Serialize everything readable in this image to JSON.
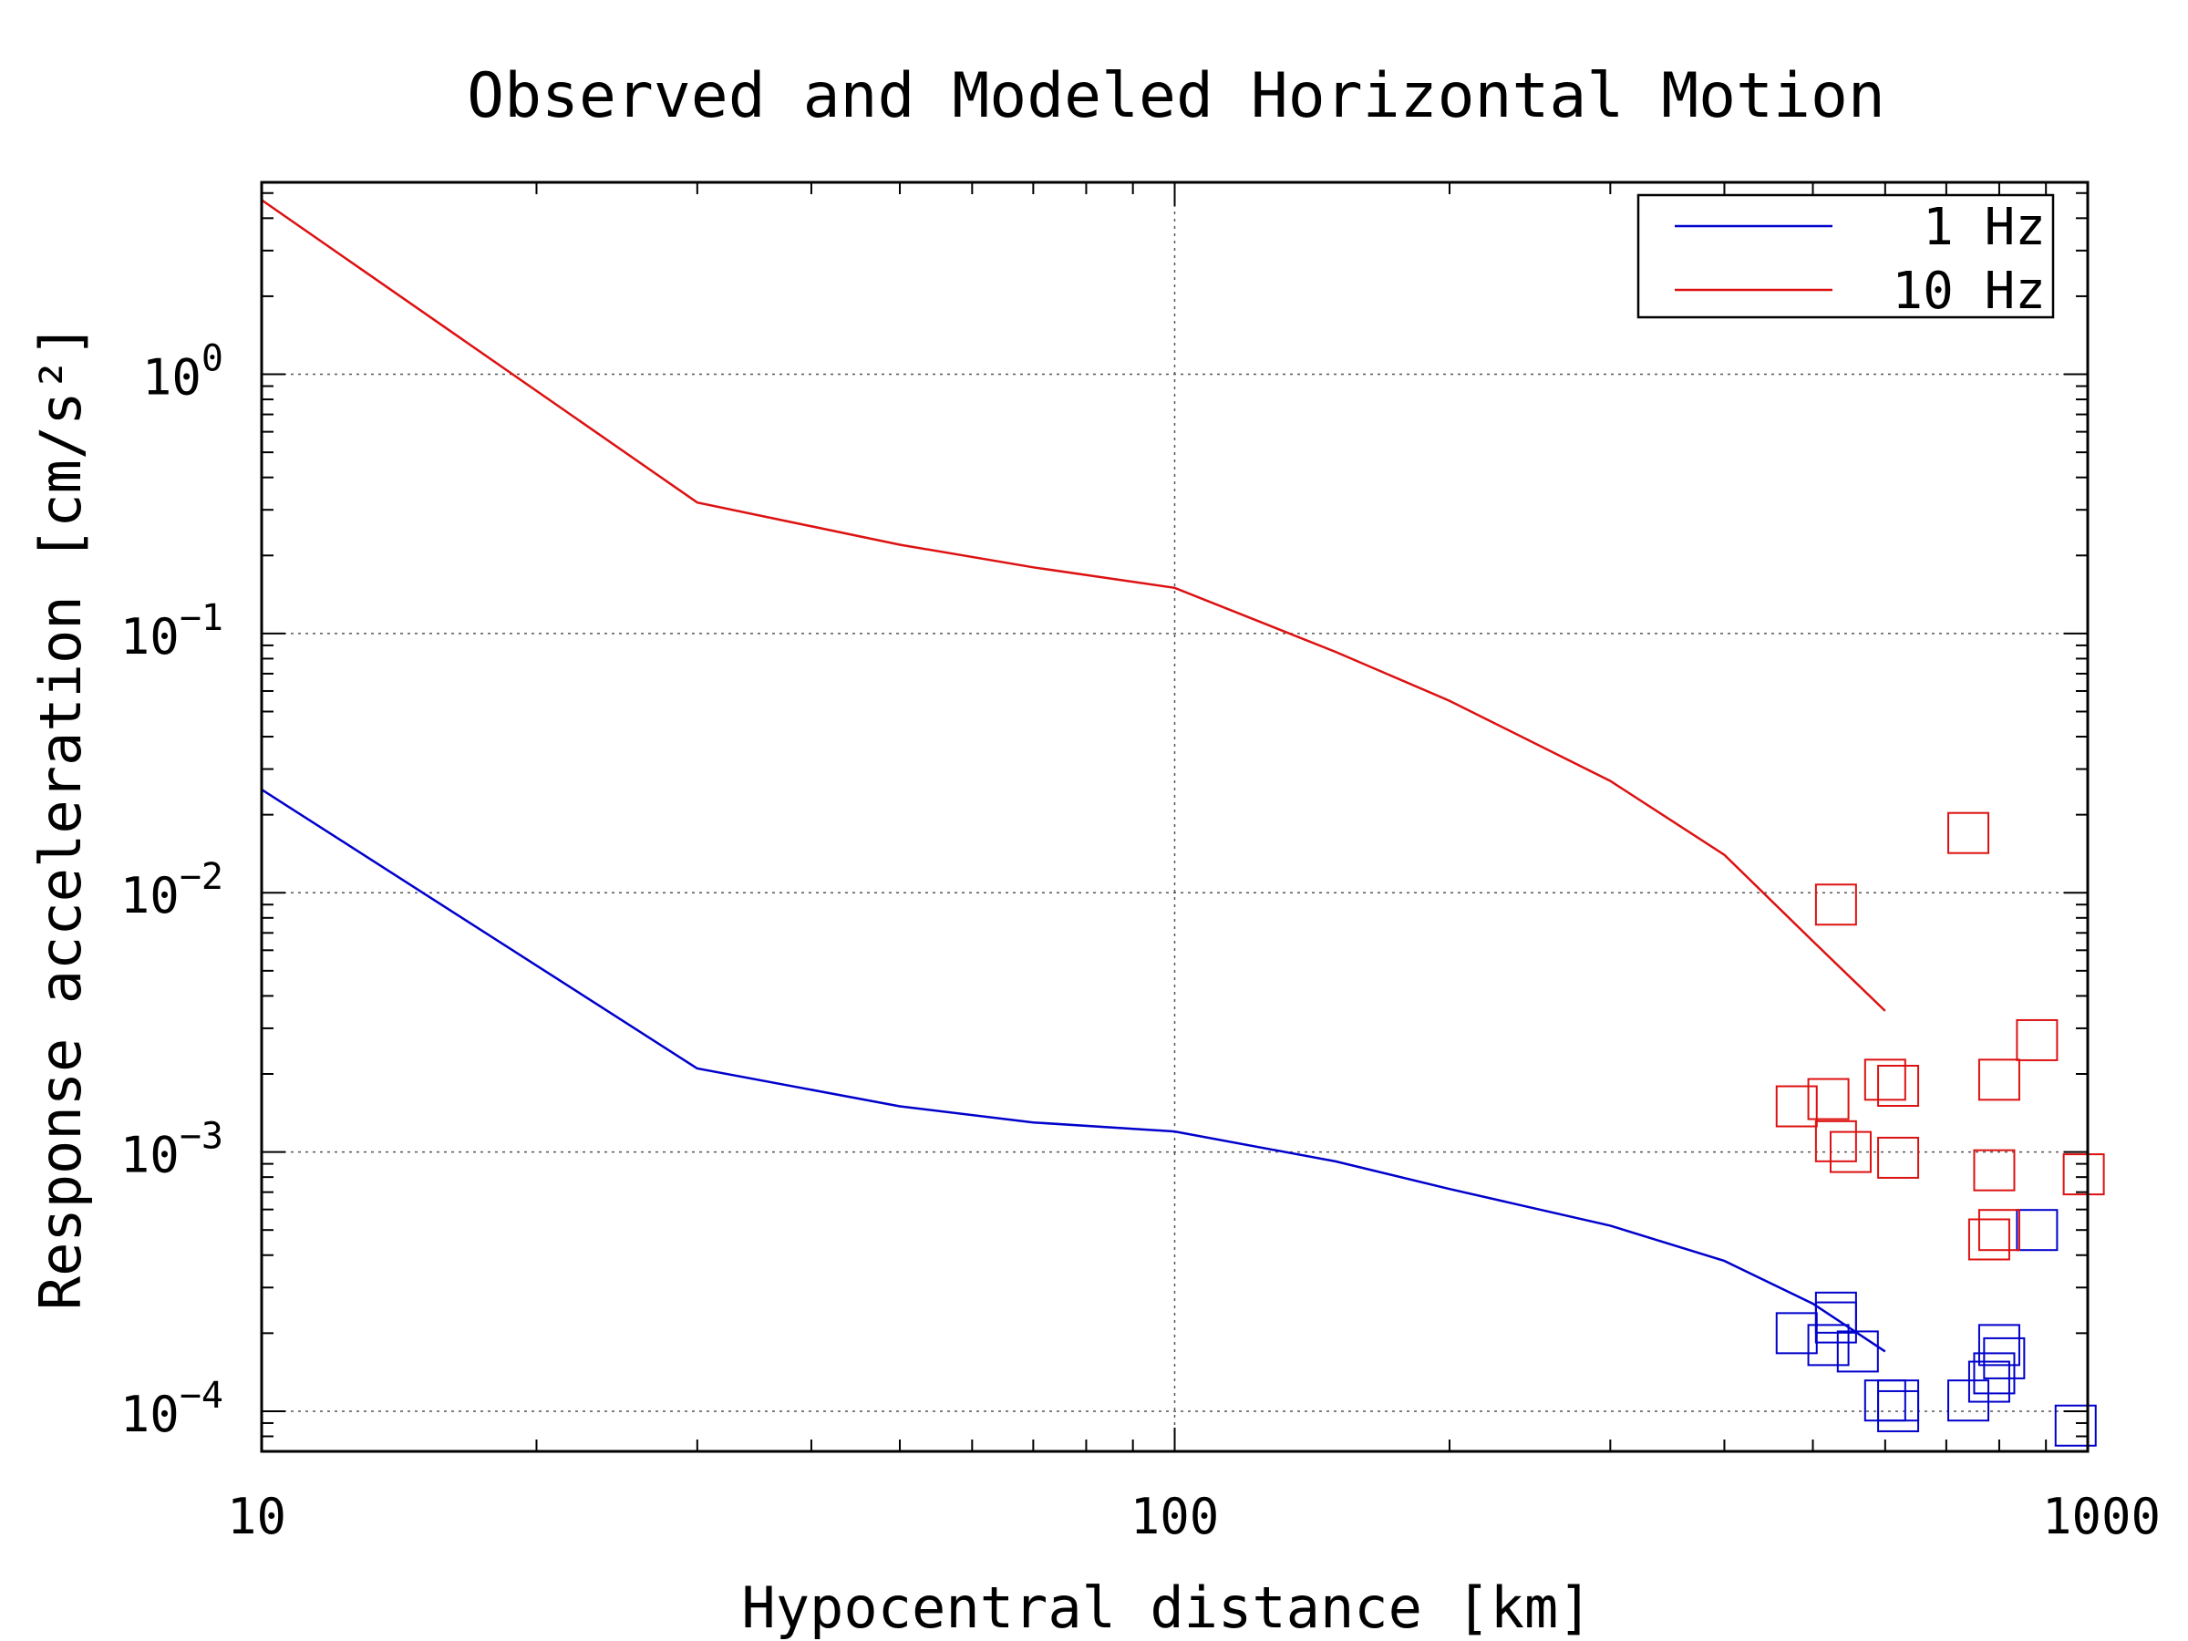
{
  "chart_data": {
    "type": "scatter",
    "title": "Observed and Modeled Horizontal Motion",
    "xlabel": "Hypocentral distance [km]",
    "ylabel": "Response acceleration [cm/s²]",
    "xscale": "log",
    "yscale": "log",
    "xlim": [
      10,
      1000
    ],
    "ylim": [
      7e-05,
      5.5
    ],
    "x_ticks": [
      {
        "value": 10,
        "label": "10"
      },
      {
        "value": 100,
        "label": "100"
      },
      {
        "value": 1000,
        "label": "1000"
      }
    ],
    "y_ticks": [
      {
        "value": 0.0001,
        "base": "10",
        "exp": "−4"
      },
      {
        "value": 0.001,
        "base": "10",
        "exp": "−3"
      },
      {
        "value": 0.01,
        "base": "10",
        "exp": "−2"
      },
      {
        "value": 0.1,
        "base": "10",
        "exp": "−1"
      },
      {
        "value": 1,
        "base": "10",
        "exp": "0"
      }
    ],
    "grid": true,
    "legend_position": "top-right",
    "series": [
      {
        "name": "1 Hz",
        "color": "#0000cc",
        "model_line": [
          [
            10,
            0.025
          ],
          [
            30,
            0.0021
          ],
          [
            50,
            0.0015
          ],
          [
            70,
            0.0013
          ],
          [
            100,
            0.0012
          ],
          [
            150,
            0.00092
          ],
          [
            200,
            0.00072
          ],
          [
            300,
            0.00052
          ],
          [
            400,
            0.00038
          ],
          [
            500,
            0.00026
          ],
          [
            600,
            0.00017
          ]
        ],
        "observed": [
          [
            480,
            0.0002
          ],
          [
            530,
            0.00024
          ],
          [
            530,
            0.00022
          ],
          [
            520,
            0.00018
          ],
          [
            560,
            0.00017
          ],
          [
            600,
            0.00011
          ],
          [
            620,
            0.00011
          ],
          [
            620,
            0.0001
          ],
          [
            740,
            0.00011
          ],
          [
            800,
            0.00018
          ],
          [
            810,
            0.00016
          ],
          [
            790,
            0.00014
          ],
          [
            780,
            0.00013
          ],
          [
            880,
            0.0005
          ],
          [
            970,
            8.8e-05
          ]
        ]
      },
      {
        "name": "10 Hz",
        "color": "#dd1111",
        "model_line": [
          [
            10,
            4.7
          ],
          [
            30,
            0.32
          ],
          [
            50,
            0.22
          ],
          [
            70,
            0.18
          ],
          [
            100,
            0.15
          ],
          [
            150,
            0.085
          ],
          [
            200,
            0.055
          ],
          [
            300,
            0.027
          ],
          [
            400,
            0.014
          ],
          [
            500,
            0.0065
          ],
          [
            600,
            0.0035
          ]
        ],
        "observed": [
          [
            480,
            0.0015
          ],
          [
            520,
            0.0016
          ],
          [
            530,
            0.0011
          ],
          [
            550,
            0.001
          ],
          [
            530,
            0.009
          ],
          [
            600,
            0.0019
          ],
          [
            620,
            0.0018
          ],
          [
            620,
            0.00095
          ],
          [
            740,
            0.017
          ],
          [
            800,
            0.0019
          ],
          [
            790,
            0.00085
          ],
          [
            780,
            0.00046
          ],
          [
            800,
            0.0005
          ],
          [
            880,
            0.0027
          ],
          [
            990,
            0.00082
          ]
        ]
      }
    ]
  }
}
